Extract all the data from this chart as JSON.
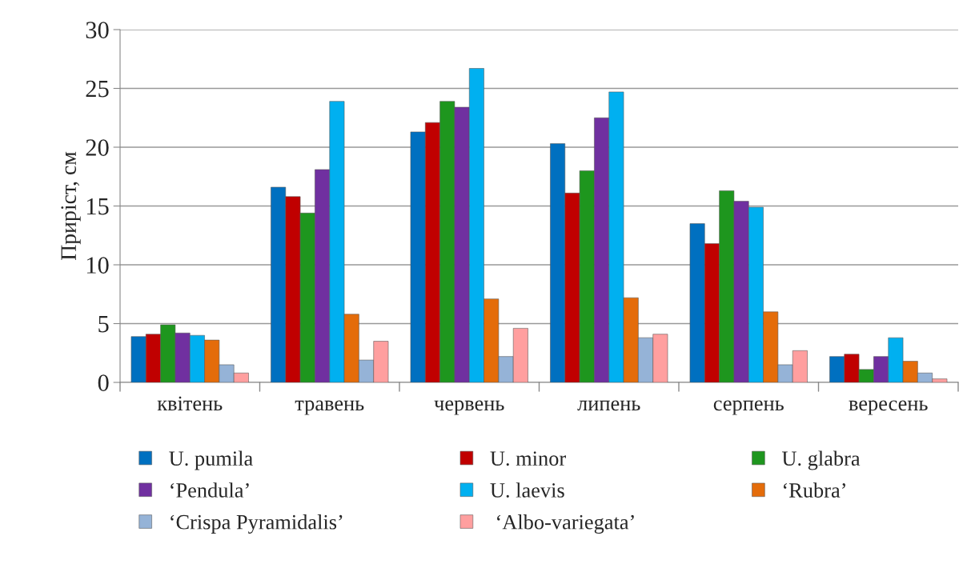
{
  "chart_data": {
    "type": "bar",
    "ylabel": "Приріст, см",
    "categories": [
      "квітень",
      "травень",
      "червень",
      "липень",
      "серпень",
      "вересень"
    ],
    "series": [
      {
        "name": "U. pumila",
        "color": "#0070c0",
        "values": [
          3.9,
          16.6,
          21.3,
          20.3,
          13.5,
          2.2
        ]
      },
      {
        "name": "U. minor",
        "color": "#c00000",
        "values": [
          4.1,
          15.8,
          22.1,
          16.1,
          11.8,
          2.4
        ]
      },
      {
        "name": "U. glabra",
        "color": "#1e961e",
        "values": [
          4.9,
          14.4,
          23.9,
          18.0,
          16.3,
          1.1
        ]
      },
      {
        "name": "‘Pendula’",
        "color": "#7030a0",
        "values": [
          4.2,
          18.1,
          23.4,
          22.5,
          15.4,
          2.2
        ]
      },
      {
        "name": "U. laevis",
        "color": "#00b0f0",
        "values": [
          4.0,
          23.9,
          26.7,
          24.7,
          14.9,
          3.8
        ]
      },
      {
        "name": "‘Rubra’",
        "color": "#e46c0a",
        "values": [
          3.6,
          5.8,
          7.1,
          7.2,
          6.0,
          1.8
        ]
      },
      {
        "name": "‘Crispa Pyramidalis’",
        "color": "#95b3d7",
        "values": [
          1.5,
          1.9,
          2.2,
          3.8,
          1.5,
          0.8
        ]
      },
      {
        "name": " ‘Albo-variegata’",
        "color": "#ff9f9f",
        "values": [
          0.8,
          3.5,
          4.6,
          4.1,
          2.7,
          0.3
        ]
      }
    ],
    "ylim": [
      0,
      30
    ],
    "yticks": [
      0,
      5,
      10,
      15,
      20,
      25,
      30
    ],
    "grid": "y",
    "legend": "bottom"
  }
}
